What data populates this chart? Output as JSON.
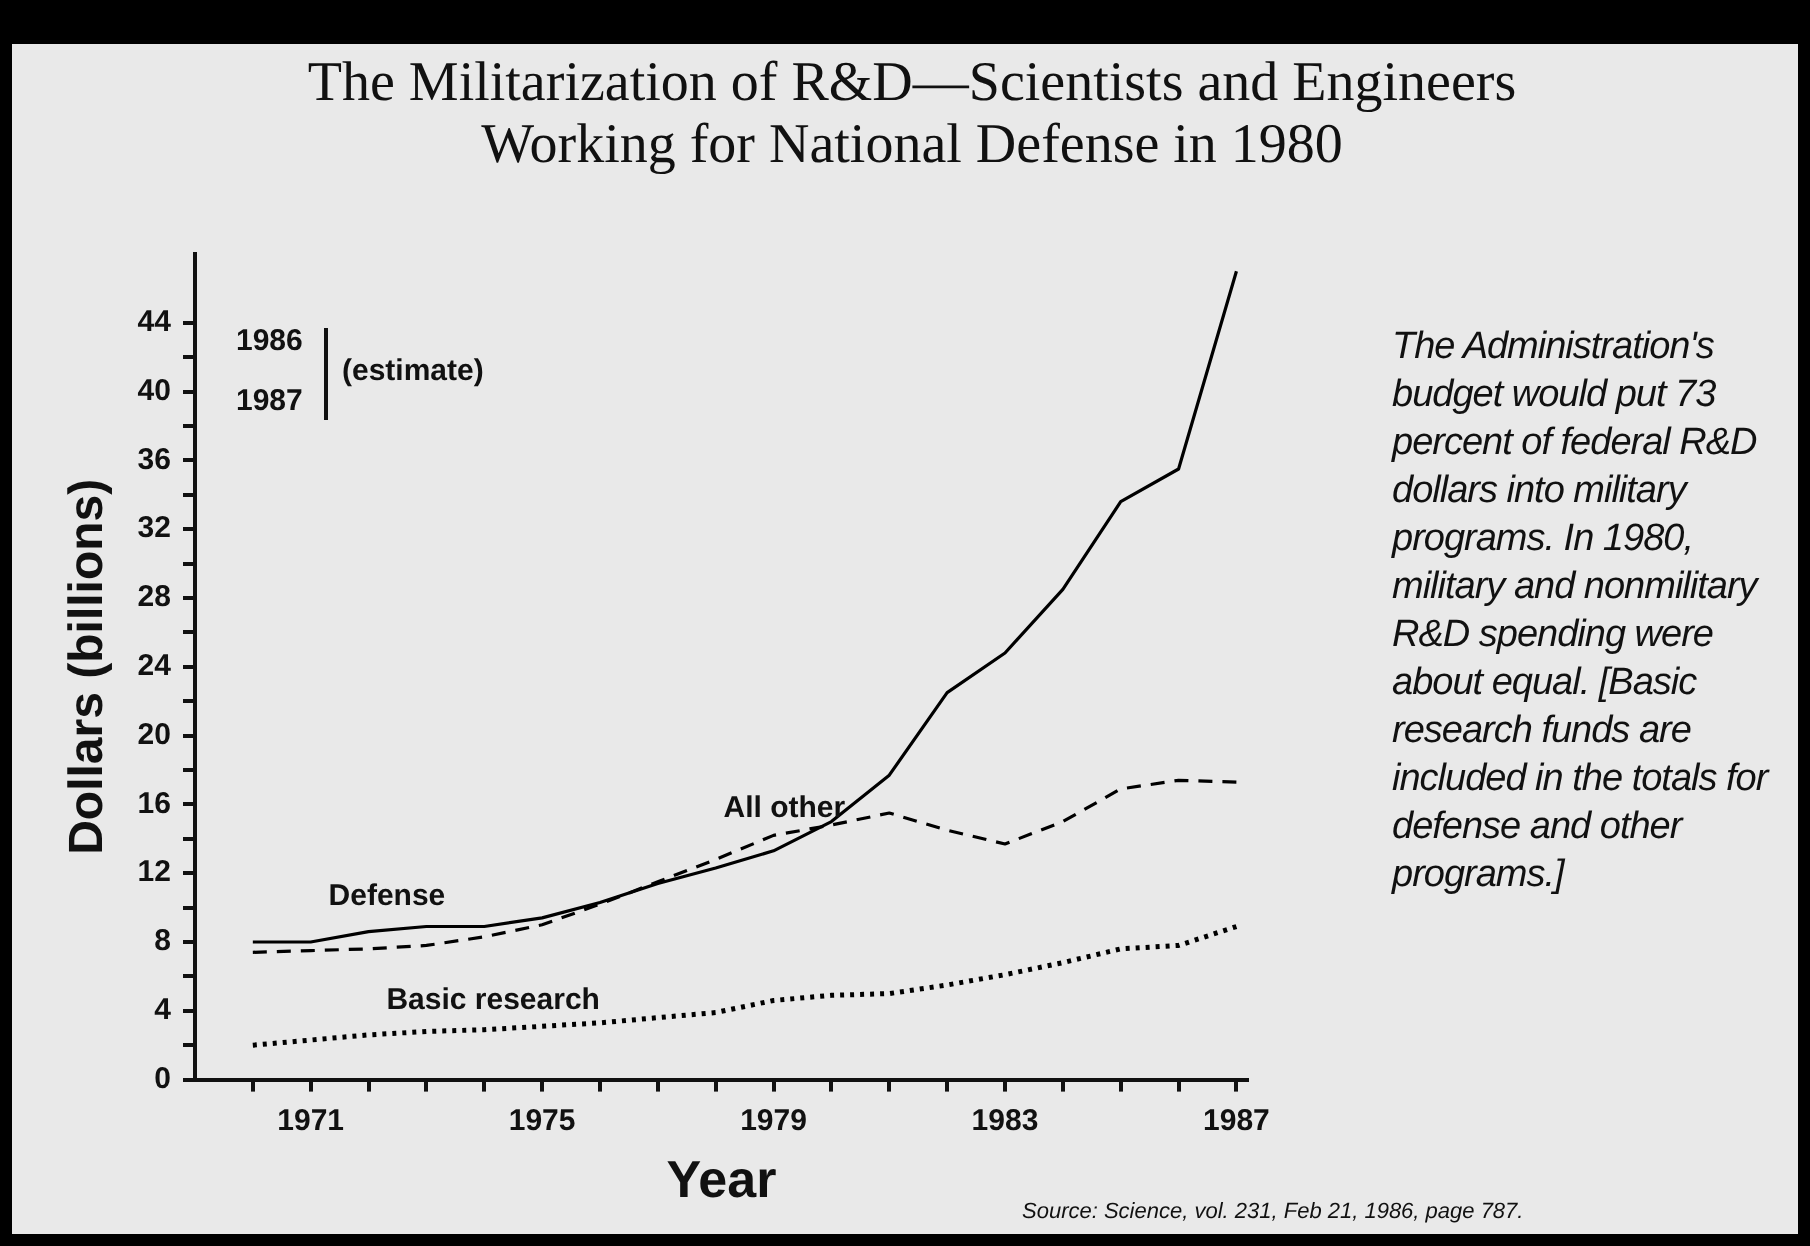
{
  "chart_data": {
    "type": "line",
    "title": "The Militarization of R&D—Scientists and Engineers Working for National Defense in 1980",
    "xlabel": "Year",
    "ylabel": "Dollars (billions)",
    "x": [
      1970,
      1971,
      1972,
      1973,
      1974,
      1975,
      1976,
      1977,
      1978,
      1979,
      1980,
      1981,
      1982,
      1983,
      1984,
      1985,
      1986,
      1987
    ],
    "series": [
      {
        "name": "Defense",
        "color": "#000000",
        "line_style": "solid",
        "values": [
          8,
          8,
          8.6,
          8.9,
          8.9,
          9.4,
          10.3,
          11.4,
          12.3,
          13.3,
          15,
          17.7,
          22.5,
          24.8,
          28.5,
          33.6,
          35.5,
          47
        ]
      },
      {
        "name": "All other",
        "color": "#000000",
        "line_style": "dashed",
        "values": [
          7.4,
          7.5,
          7.6,
          7.8,
          8.3,
          9,
          10.2,
          11.5,
          12.8,
          14.2,
          14.8,
          15.5,
          14.5,
          13.7,
          15,
          16.9,
          17.4,
          17.3
        ]
      },
      {
        "name": "Basic research",
        "color": "#000000",
        "line_style": "dotted",
        "values": [
          2,
          2.3,
          2.6,
          2.8,
          2.9,
          3.1,
          3.3,
          3.6,
          3.9,
          4.6,
          4.9,
          5,
          5.5,
          6.1,
          6.8,
          7.6,
          7.8,
          8.9
        ]
      }
    ],
    "xlim": [
      1969,
      1987.2
    ],
    "ylim": [
      0,
      48
    ],
    "xticks": [
      {
        "value": 1970,
        "label": null
      },
      1971,
      {
        "value": 1972,
        "label": null
      },
      {
        "value": 1973,
        "label": null
      },
      {
        "value": 1974,
        "label": null
      },
      1975,
      {
        "value": 1976,
        "label": null
      },
      {
        "value": 1977,
        "label": null
      },
      {
        "value": 1978,
        "label": null
      },
      1979,
      {
        "value": 1980,
        "label": null
      },
      {
        "value": 1981,
        "label": null
      },
      {
        "value": 1982,
        "label": null
      },
      1983,
      {
        "value": 1984,
        "label": null
      },
      {
        "value": 1985,
        "label": null
      },
      {
        "value": 1986,
        "label": null
      },
      1987
    ],
    "yticks": [
      0,
      {
        "value": 2,
        "label": null
      },
      4,
      {
        "value": 6,
        "label": null
      },
      8,
      {
        "value": 10,
        "label": null
      },
      12,
      {
        "value": 14,
        "label": null
      },
      16,
      {
        "value": 18,
        "label": null
      },
      20,
      {
        "value": 22,
        "label": null
      },
      24,
      {
        "value": 26,
        "label": null
      },
      28,
      {
        "value": 30,
        "label": null
      },
      32,
      {
        "value": 34,
        "label": null
      },
      36,
      {
        "value": 38,
        "label": null
      },
      40,
      {
        "value": 42,
        "label": null
      },
      44
    ],
    "grid": false,
    "legend": false,
    "marker": "none",
    "annotations": [
      "1986",
      "1987",
      "(estimate)",
      "The Administration's budget would put 73 percent of federal R&D dollars into military programs. In 1980, military and nonmilitary R&D spending were about equal. [Basic research funds are included in the totals for defense and other programs.]",
      "Source: Science, vol. 231, Feb 21, 1986, page 787."
    ]
  }
}
